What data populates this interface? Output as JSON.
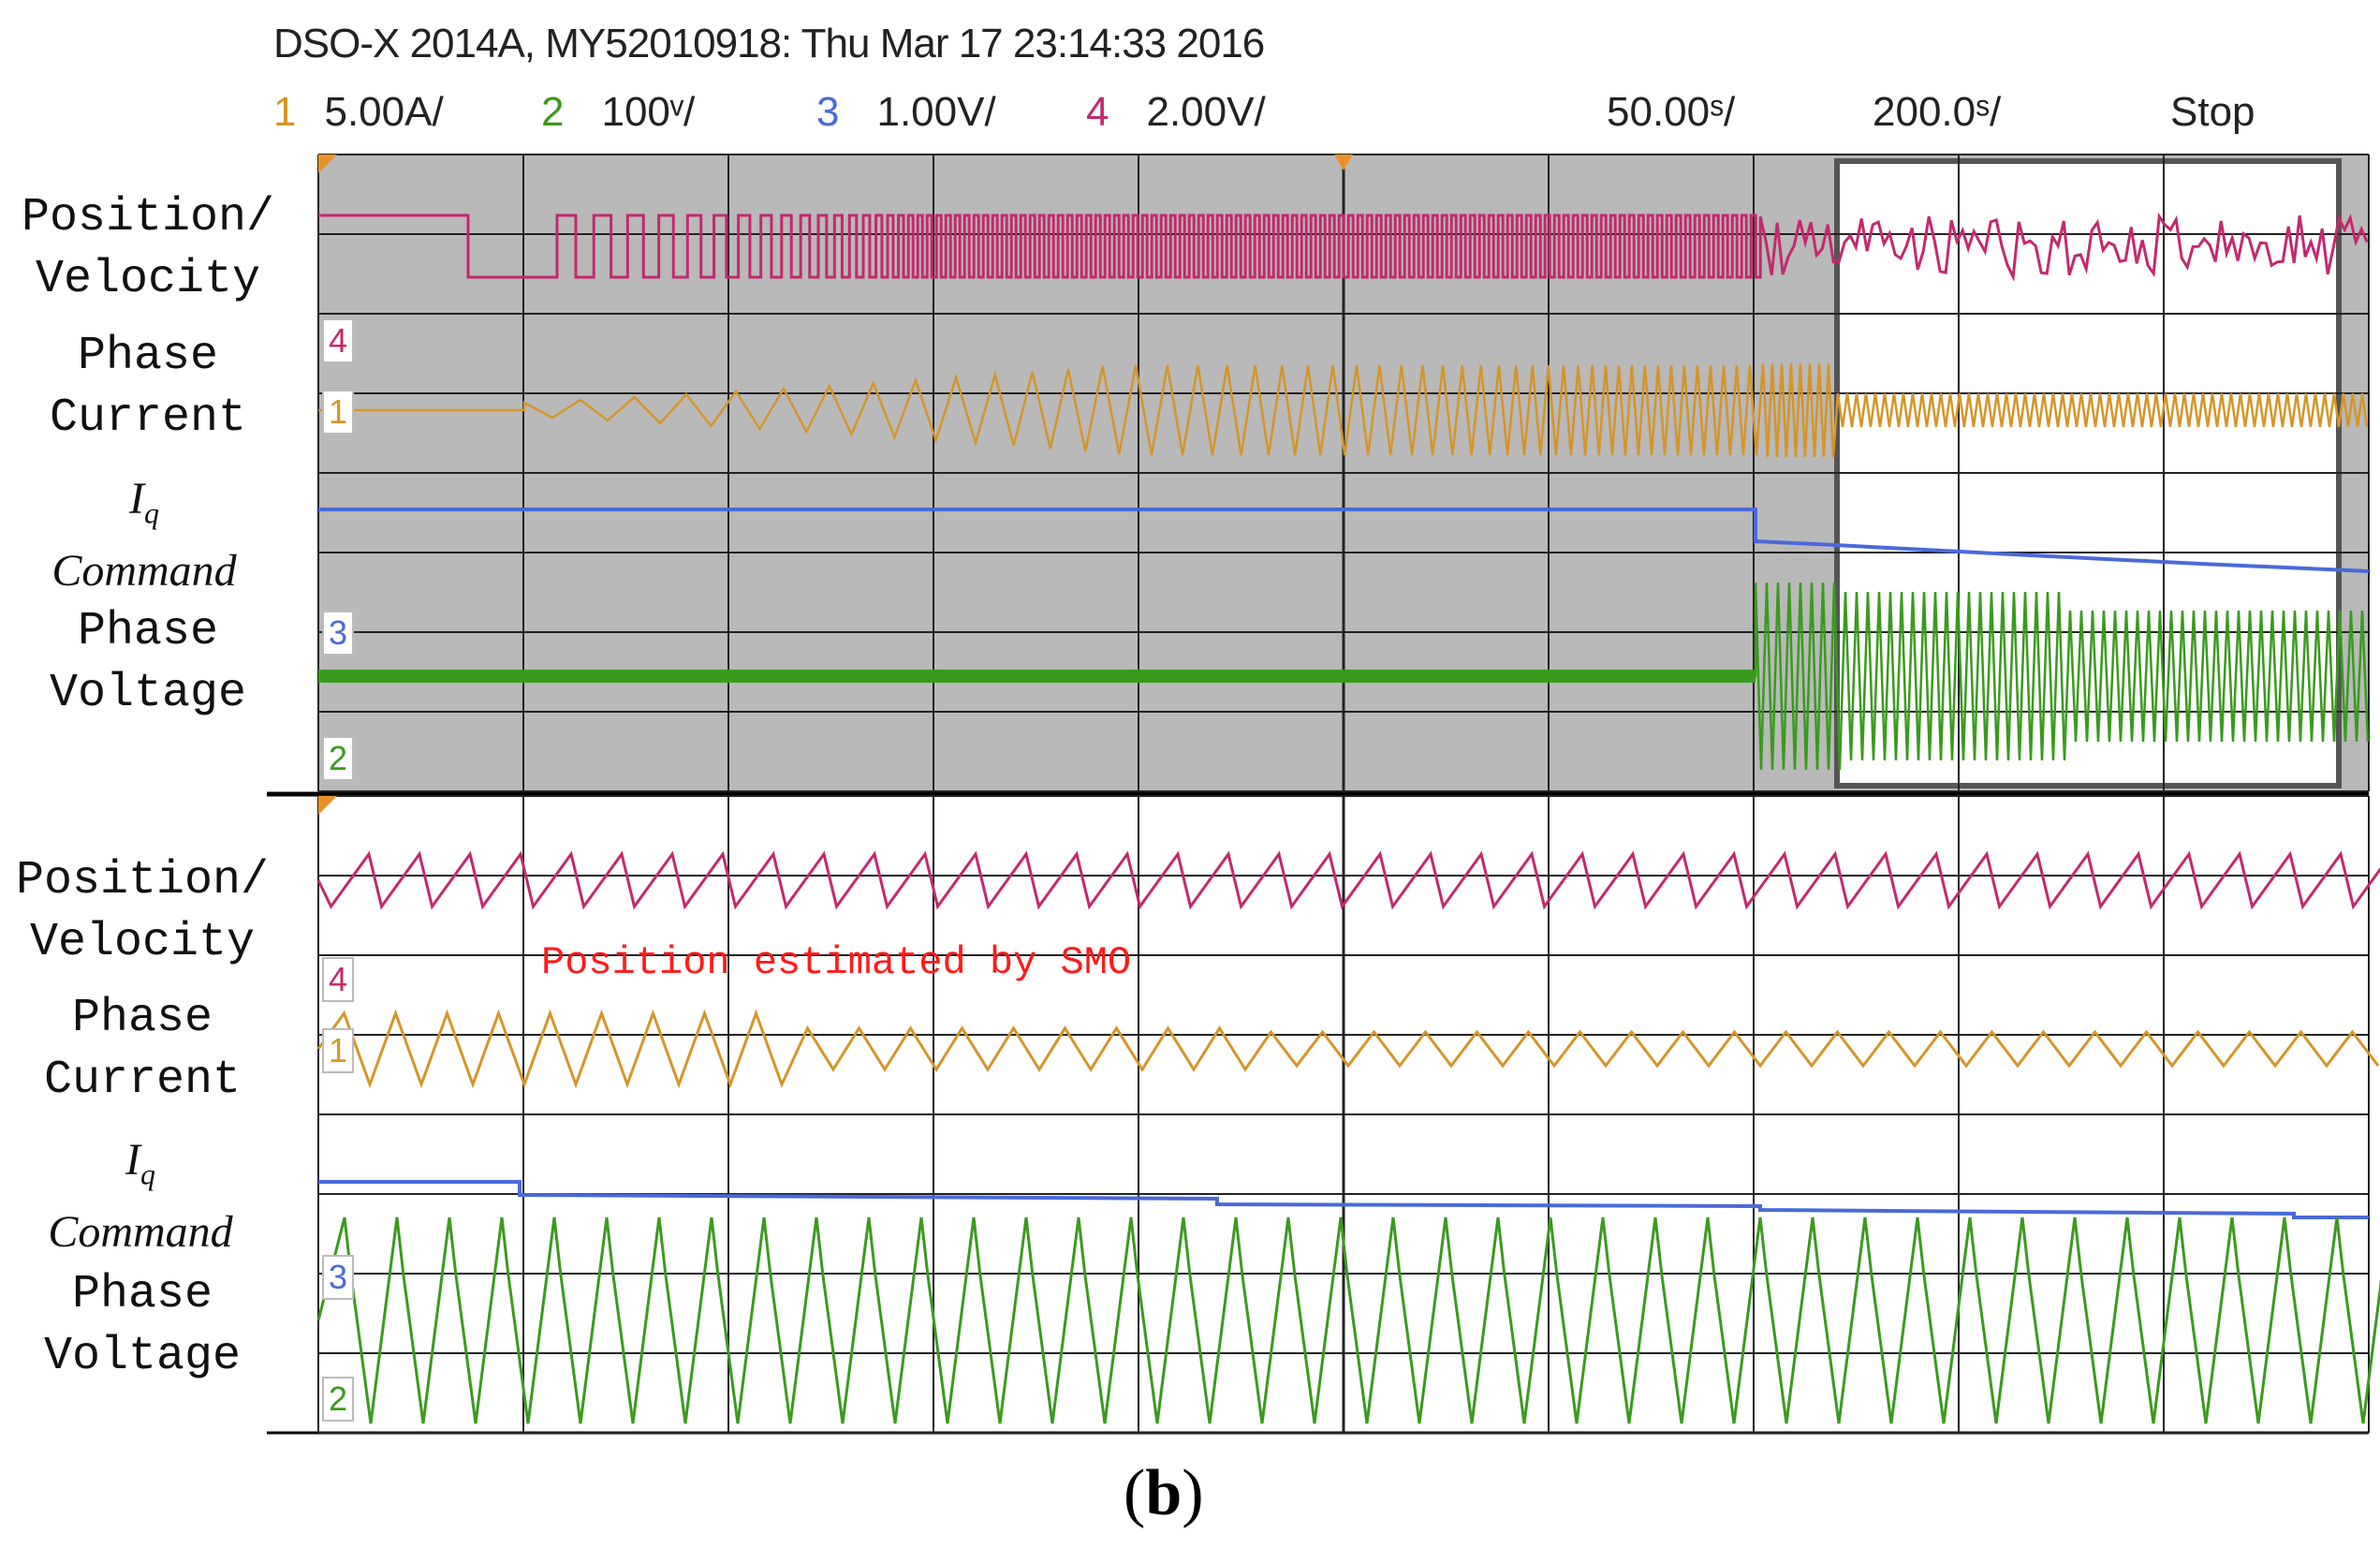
{
  "header": {
    "title": "DSO-X 2014A, MY52010918: Thu Mar 17 23:14:33 2016"
  },
  "scales": {
    "ch1_num": "1",
    "ch1_val": "5.00A/",
    "ch2_num": "2",
    "ch2_val": "100ᵛ/",
    "ch3_num": "3",
    "ch3_val": "1.00V/",
    "ch4_num": "4",
    "ch4_val": "2.00V/",
    "timebase_zoom": "50.00ˢ/",
    "timebase_main": "200.0ˢ/",
    "run_state": "Stop"
  },
  "colors": {
    "ch1": "#d4952a",
    "ch2": "#3a9a1e",
    "ch3": "#4a6ad8",
    "ch4": "#c4286e",
    "top_bg": "#b9b9b9",
    "bottom_bg": "#ffffff",
    "annotation": "#ff1a1a"
  },
  "top_panel": {
    "labels": {
      "pos1": "Position/",
      "pos2": "Velocity",
      "cur1": "Phase",
      "cur2": "Current",
      "iq1": "I",
      "iq_sub": "q",
      "iq2": "Command",
      "volt1": "Phase",
      "volt2": "Voltage"
    },
    "markers": {
      "m4": "4",
      "m1": "1",
      "m3": "3",
      "m2": "2"
    }
  },
  "bottom_panel": {
    "labels": {
      "pos1": "Position/",
      "pos2": "Velocity",
      "cur1": "Phase",
      "cur2": "Current",
      "iq1": "I",
      "iq_sub": "q",
      "iq2": "Command",
      "volt1": "Phase",
      "volt2": "Voltage"
    },
    "markers": {
      "m4": "4",
      "m1": "1",
      "m3": "3",
      "m2": "2"
    },
    "annotation": "Position estimated by SMO"
  },
  "figure_label": {
    "open": "(",
    "letter": "b",
    "close": ")"
  }
}
